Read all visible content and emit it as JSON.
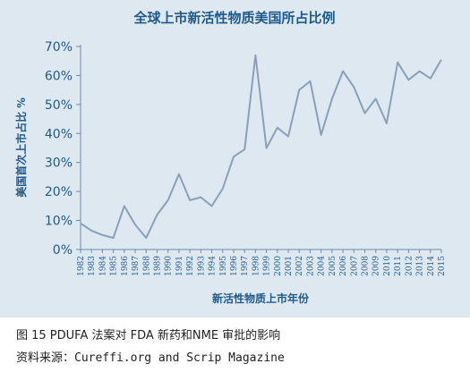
{
  "chart_data": {
    "type": "line",
    "title": "全球上市新活性物质美国所占比例",
    "xlabel": "新活性物质上市年份",
    "ylabel": "美国首次上市占比 %",
    "ylim": [
      0,
      70
    ],
    "yticks": [
      "0%",
      "10%",
      "20%",
      "30%",
      "40%",
      "50%",
      "60%",
      "70%"
    ],
    "categories": [
      "1982",
      "1983",
      "1984",
      "1985",
      "1986",
      "1987",
      "1988",
      "1989",
      "1990",
      "1991",
      "1992",
      "1993",
      "1994",
      "1995",
      "1996",
      "1997",
      "1998",
      "1999",
      "2000",
      "2001",
      "2002",
      "2003",
      "2004",
      "2005",
      "2006",
      "2007",
      "2008",
      "2009",
      "2010",
      "2011",
      "2012",
      "2013",
      "2014",
      "2015"
    ],
    "values": [
      9,
      6.5,
      5,
      4,
      15,
      8.5,
      4,
      12,
      17,
      26,
      17,
      18,
      15,
      21,
      32,
      34.5,
      67,
      35,
      42,
      39,
      55,
      58,
      39.5,
      52,
      61.5,
      56,
      47,
      52,
      43.5,
      64.5,
      58.5,
      61.5,
      59,
      65.5
    ],
    "color": "#8a9fb8",
    "grid": false
  },
  "caption": "图 15  PDUFA 法案对 FDA 新药和NME 审批的影响",
  "source": "资料来源：Cureffi.org and Scrip Magazine"
}
